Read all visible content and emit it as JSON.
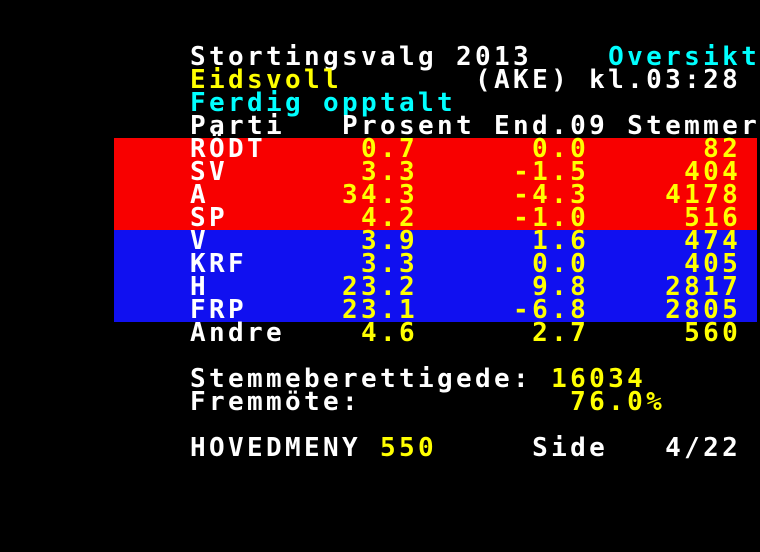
{
  "palette": {
    "white": "#ffffff",
    "yellow": "#ffff00",
    "cyan": "#00ffff",
    "red": "#f80000",
    "blue": "#1010f0"
  },
  "page": {
    "title": "Stortingsvalg 2013",
    "view": "Oversikt",
    "municipality": "Eidsvoll",
    "station_code": "(AKE)",
    "clock": "kl.03:28",
    "status": "Ferdig opptalt",
    "summary": {
      "eligible_label": "Stemmeberettigede:",
      "eligible_value": "16034",
      "turnout_label": "Fremmöte:",
      "turnout_value": "76.0%"
    },
    "footer": {
      "menu_label": "HOVEDMENY",
      "menu_page": "550",
      "side_label": "Side",
      "page_indicator": "4/22"
    }
  },
  "table": {
    "headers": [
      "Parti",
      "Prosent",
      "End.09",
      "Stemmer"
    ],
    "rows": [
      {
        "party": "RÖDT",
        "prosent": "0.7",
        "end09": "0.0",
        "stemmer": "82",
        "bloc": "red"
      },
      {
        "party": "SV",
        "prosent": "3.3",
        "end09": "-1.5",
        "stemmer": "404",
        "bloc": "red"
      },
      {
        "party": "A",
        "prosent": "34.3",
        "end09": "-4.3",
        "stemmer": "4178",
        "bloc": "red"
      },
      {
        "party": "SP",
        "prosent": "4.2",
        "end09": "-1.0",
        "stemmer": "516",
        "bloc": "red"
      },
      {
        "party": "V",
        "prosent": "3.9",
        "end09": "1.6",
        "stemmer": "474",
        "bloc": "blue"
      },
      {
        "party": "KRF",
        "prosent": "3.3",
        "end09": "0.0",
        "stemmer": "405",
        "bloc": "blue"
      },
      {
        "party": "H",
        "prosent": "23.2",
        "end09": "9.8",
        "stemmer": "2817",
        "bloc": "blue"
      },
      {
        "party": "FRP",
        "prosent": "23.1",
        "end09": "-6.8",
        "stemmer": "2805",
        "bloc": "blue"
      },
      {
        "party": "Andre",
        "prosent": "4.6",
        "end09": "2.7",
        "stemmer": "560",
        "bloc": "none"
      }
    ]
  },
  "lines": [
    {
      "segs": [
        {
          "t": "Stortingsvalg 2013",
          "c": "white"
        },
        {
          "t": "    Oversikt",
          "c": "cyan"
        }
      ]
    },
    {
      "segs": [
        {
          "t": "Eidsvoll",
          "c": "yellow"
        },
        {
          "t": "       (AKE) kl.03:28",
          "c": "white"
        }
      ]
    },
    {
      "segs": [
        {
          "t": "Ferdig opptalt",
          "c": "cyan"
        }
      ]
    },
    {
      "segs": [
        {
          "t": "Parti   Prosent End.09 Stemmer",
          "c": "white"
        }
      ]
    },
    {
      "segs": [
        {
          "t": "RÖDT",
          "c": "white"
        },
        {
          "t": "     0.7      0.0      82",
          "c": "yellow"
        }
      ]
    },
    {
      "segs": [
        {
          "t": "SV",
          "c": "white"
        },
        {
          "t": "       3.3     -1.5     404",
          "c": "yellow"
        }
      ]
    },
    {
      "segs": [
        {
          "t": "A",
          "c": "white"
        },
        {
          "t": "       34.3     -4.3    4178",
          "c": "yellow"
        }
      ]
    },
    {
      "segs": [
        {
          "t": "SP",
          "c": "white"
        },
        {
          "t": "       4.2     -1.0     516",
          "c": "yellow"
        }
      ]
    },
    {
      "segs": [
        {
          "t": "V",
          "c": "white"
        },
        {
          "t": "        3.9      1.6     474",
          "c": "yellow"
        }
      ]
    },
    {
      "segs": [
        {
          "t": "KRF",
          "c": "white"
        },
        {
          "t": "      3.3      0.0     405",
          "c": "yellow"
        }
      ]
    },
    {
      "segs": [
        {
          "t": "H",
          "c": "white"
        },
        {
          "t": "       23.2      9.8    2817",
          "c": "yellow"
        }
      ]
    },
    {
      "segs": [
        {
          "t": "FRP",
          "c": "white"
        },
        {
          "t": "     23.1     -6.8    2805",
          "c": "yellow"
        }
      ]
    },
    {
      "segs": [
        {
          "t": "Andre",
          "c": "white"
        },
        {
          "t": "    4.6      2.7     560",
          "c": "yellow"
        }
      ]
    },
    {
      "segs": []
    },
    {
      "segs": [
        {
          "t": "Stemmeberettigede:",
          "c": "white"
        },
        {
          "t": " 16034",
          "c": "yellow"
        }
      ]
    },
    {
      "segs": [
        {
          "t": "Fremmöte:",
          "c": "white"
        },
        {
          "t": "           76.0%",
          "c": "yellow"
        }
      ]
    },
    {
      "segs": []
    },
    {
      "segs": [
        {
          "t": "HOVEDMENY ",
          "c": "white"
        },
        {
          "t": "550",
          "c": "yellow"
        },
        {
          "t": "     Side   4/22",
          "c": "white"
        }
      ]
    }
  ]
}
